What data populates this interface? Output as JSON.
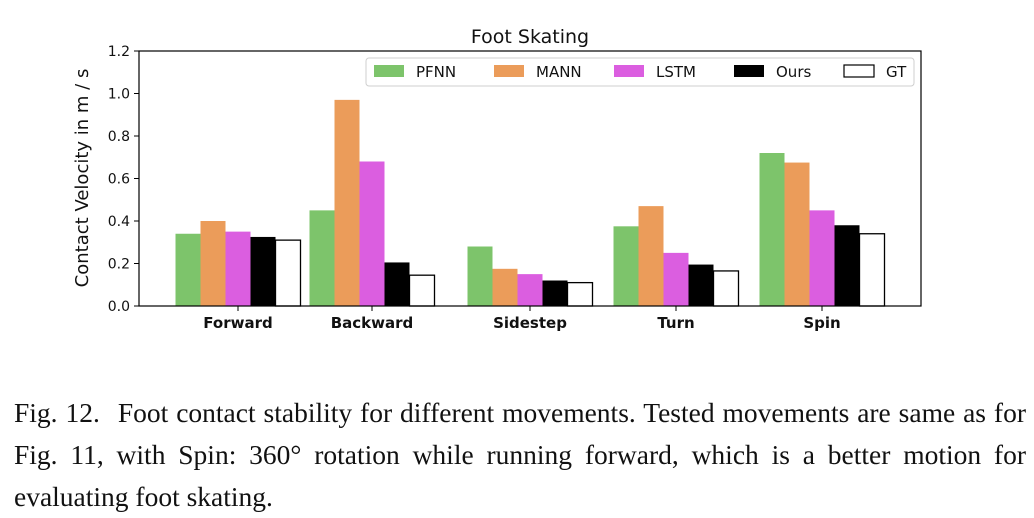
{
  "chart_data": {
    "type": "bar",
    "title": "Foot Skating",
    "xlabel": "",
    "ylabel": "Contact Velocity in m / s",
    "ylim": [
      0,
      1.2
    ],
    "yticks": [
      "0.0",
      "0.2",
      "0.4",
      "0.6",
      "0.8",
      "1.0",
      "1.2"
    ],
    "categories": [
      "Forward",
      "Backward",
      "Sidestep",
      "Turn",
      "Spin"
    ],
    "series": [
      {
        "name": "PFNN",
        "color": "#7dc46b",
        "values": [
          0.34,
          0.45,
          0.28,
          0.375,
          0.72
        ]
      },
      {
        "name": "MANN",
        "color": "#eb9c5a",
        "values": [
          0.4,
          0.97,
          0.175,
          0.47,
          0.675
        ]
      },
      {
        "name": "LSTM",
        "color": "#db5ee0",
        "values": [
          0.35,
          0.68,
          0.15,
          0.25,
          0.45
        ]
      },
      {
        "name": "Ours",
        "color": "#000000",
        "values": [
          0.325,
          0.205,
          0.12,
          0.195,
          0.38
        ]
      },
      {
        "name": "GT",
        "color": "#ffffff",
        "values": [
          0.31,
          0.145,
          0.11,
          0.165,
          0.34
        ]
      }
    ],
    "legend_position": "top-right",
    "grid": false
  },
  "caption": {
    "label": "Fig. 12.",
    "text": "Foot contact stability for different movements. Tested movements are same as for Fig. 11, with Spin: 360° rotation while running forward, which is a better motion for evaluating foot skating."
  }
}
